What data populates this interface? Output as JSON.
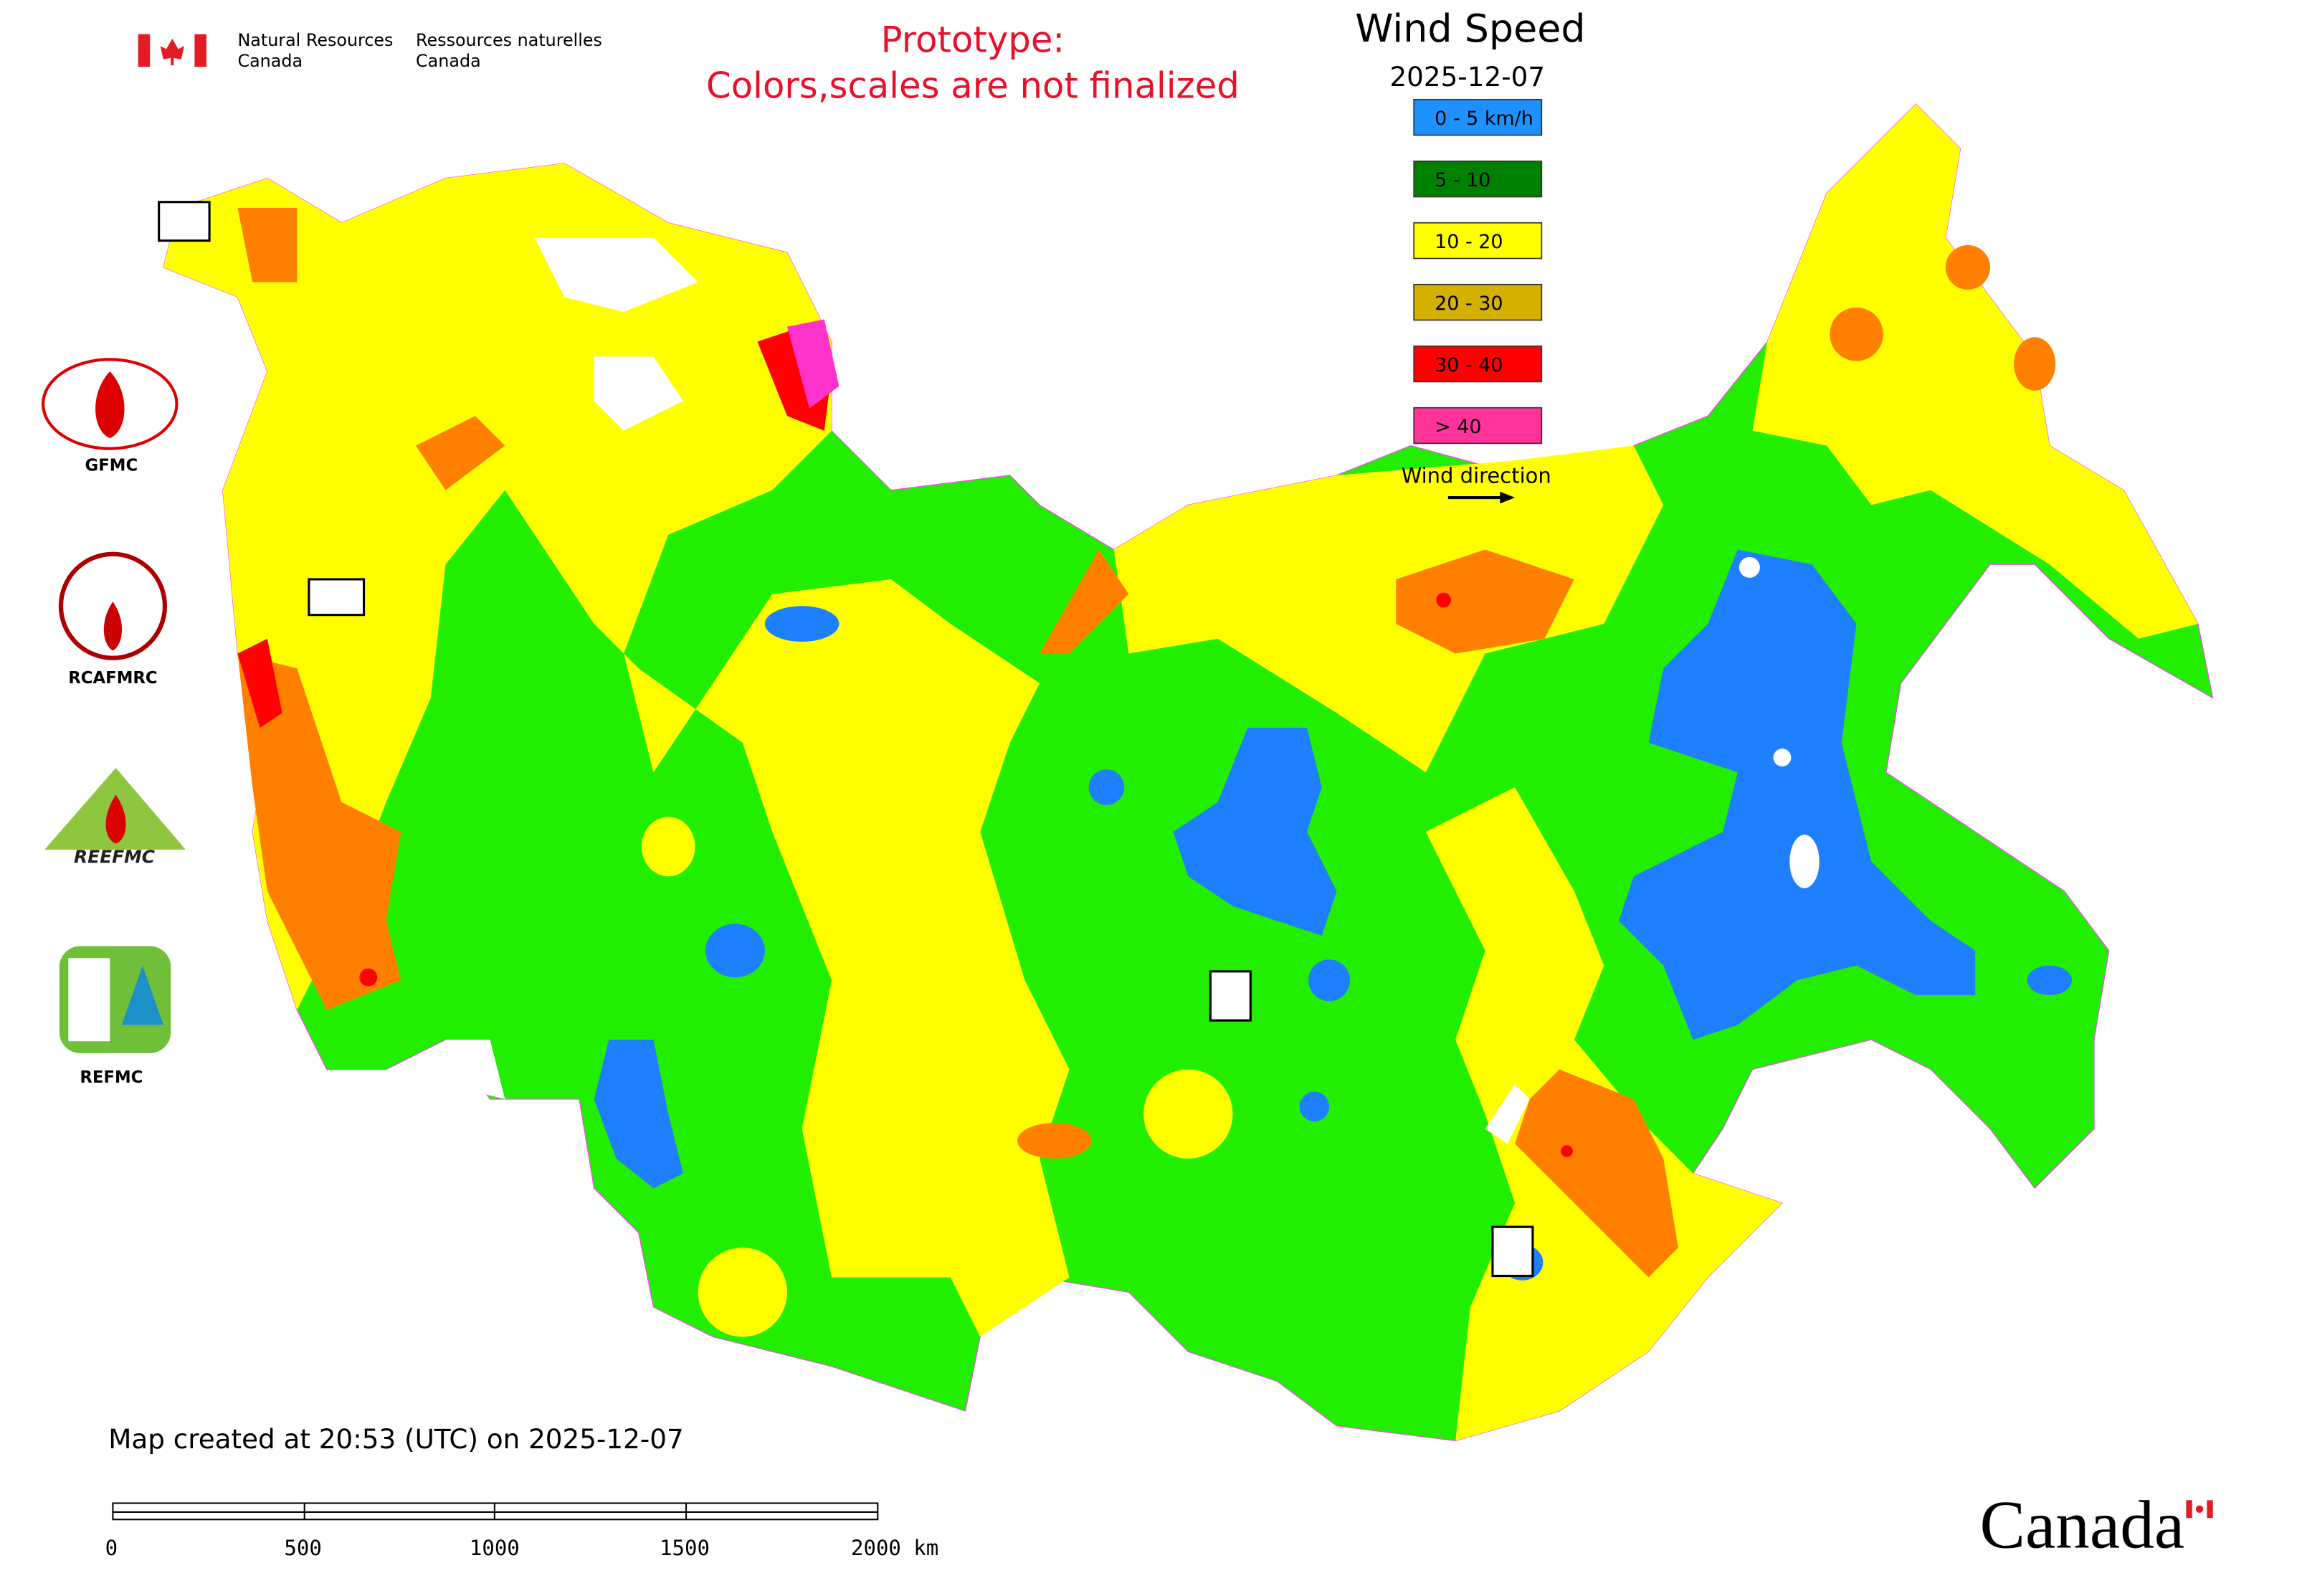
{
  "header": {
    "agency_en": [
      "Natural Resources",
      "Canada"
    ],
    "agency_fr": [
      "Ressources naturelles",
      "Canada"
    ]
  },
  "notice": [
    "Prototype:",
    "Colors,scales are not finalized"
  ],
  "legend": {
    "title": "Wind Speed",
    "date": "2025-12-07",
    "items": [
      {
        "label": "0 - 5 km/h",
        "color": "#1e90ff"
      },
      {
        "label": "5 - 10",
        "color": "#008000"
      },
      {
        "label": "10 - 20",
        "color": "#ffff00"
      },
      {
        "label": "20 - 30",
        "color": "#d4b000"
      },
      {
        "label": "30 - 40",
        "color": "#ff0000"
      },
      {
        "label": "> 40",
        "color": "#ff3399"
      }
    ],
    "direction": "Wind direction"
  },
  "logos": [
    "GFMC",
    "RCAFMRC",
    "REEFMC",
    "REFMC"
  ],
  "footer": {
    "created": "Map created at 20:53 (UTC) on 2025-12-07",
    "scale": [
      "0",
      "500",
      "1000",
      "1500",
      "2000 km"
    ],
    "wordmark": "Canada"
  }
}
